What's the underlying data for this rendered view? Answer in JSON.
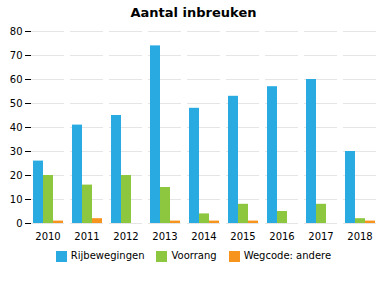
{
  "chart_data": {
    "type": "bar",
    "title": "Aantal inbreuken",
    "categories": [
      "2010",
      "2011",
      "2012",
      "2013",
      "2014",
      "2015",
      "2016",
      "2017",
      "2018"
    ],
    "series": [
      {
        "name": "Rijbewegingen",
        "color": "#29ABE2",
        "values": [
          26,
          41,
          45,
          74,
          48,
          53,
          57,
          60,
          30
        ]
      },
      {
        "name": "Voorrang",
        "color": "#8DC63F",
        "values": [
          20,
          16,
          20,
          15,
          4,
          8,
          5,
          8,
          2
        ]
      },
      {
        "name": "Wegcode: andere",
        "color": "#F7941D",
        "values": [
          1,
          2,
          0,
          1,
          1,
          1,
          0,
          0,
          1
        ]
      }
    ],
    "ylim": [
      0,
      80
    ],
    "yticks": [
      0,
      10,
      20,
      30,
      40,
      50,
      60,
      70,
      80
    ],
    "grid": true,
    "legend": "bottom"
  }
}
